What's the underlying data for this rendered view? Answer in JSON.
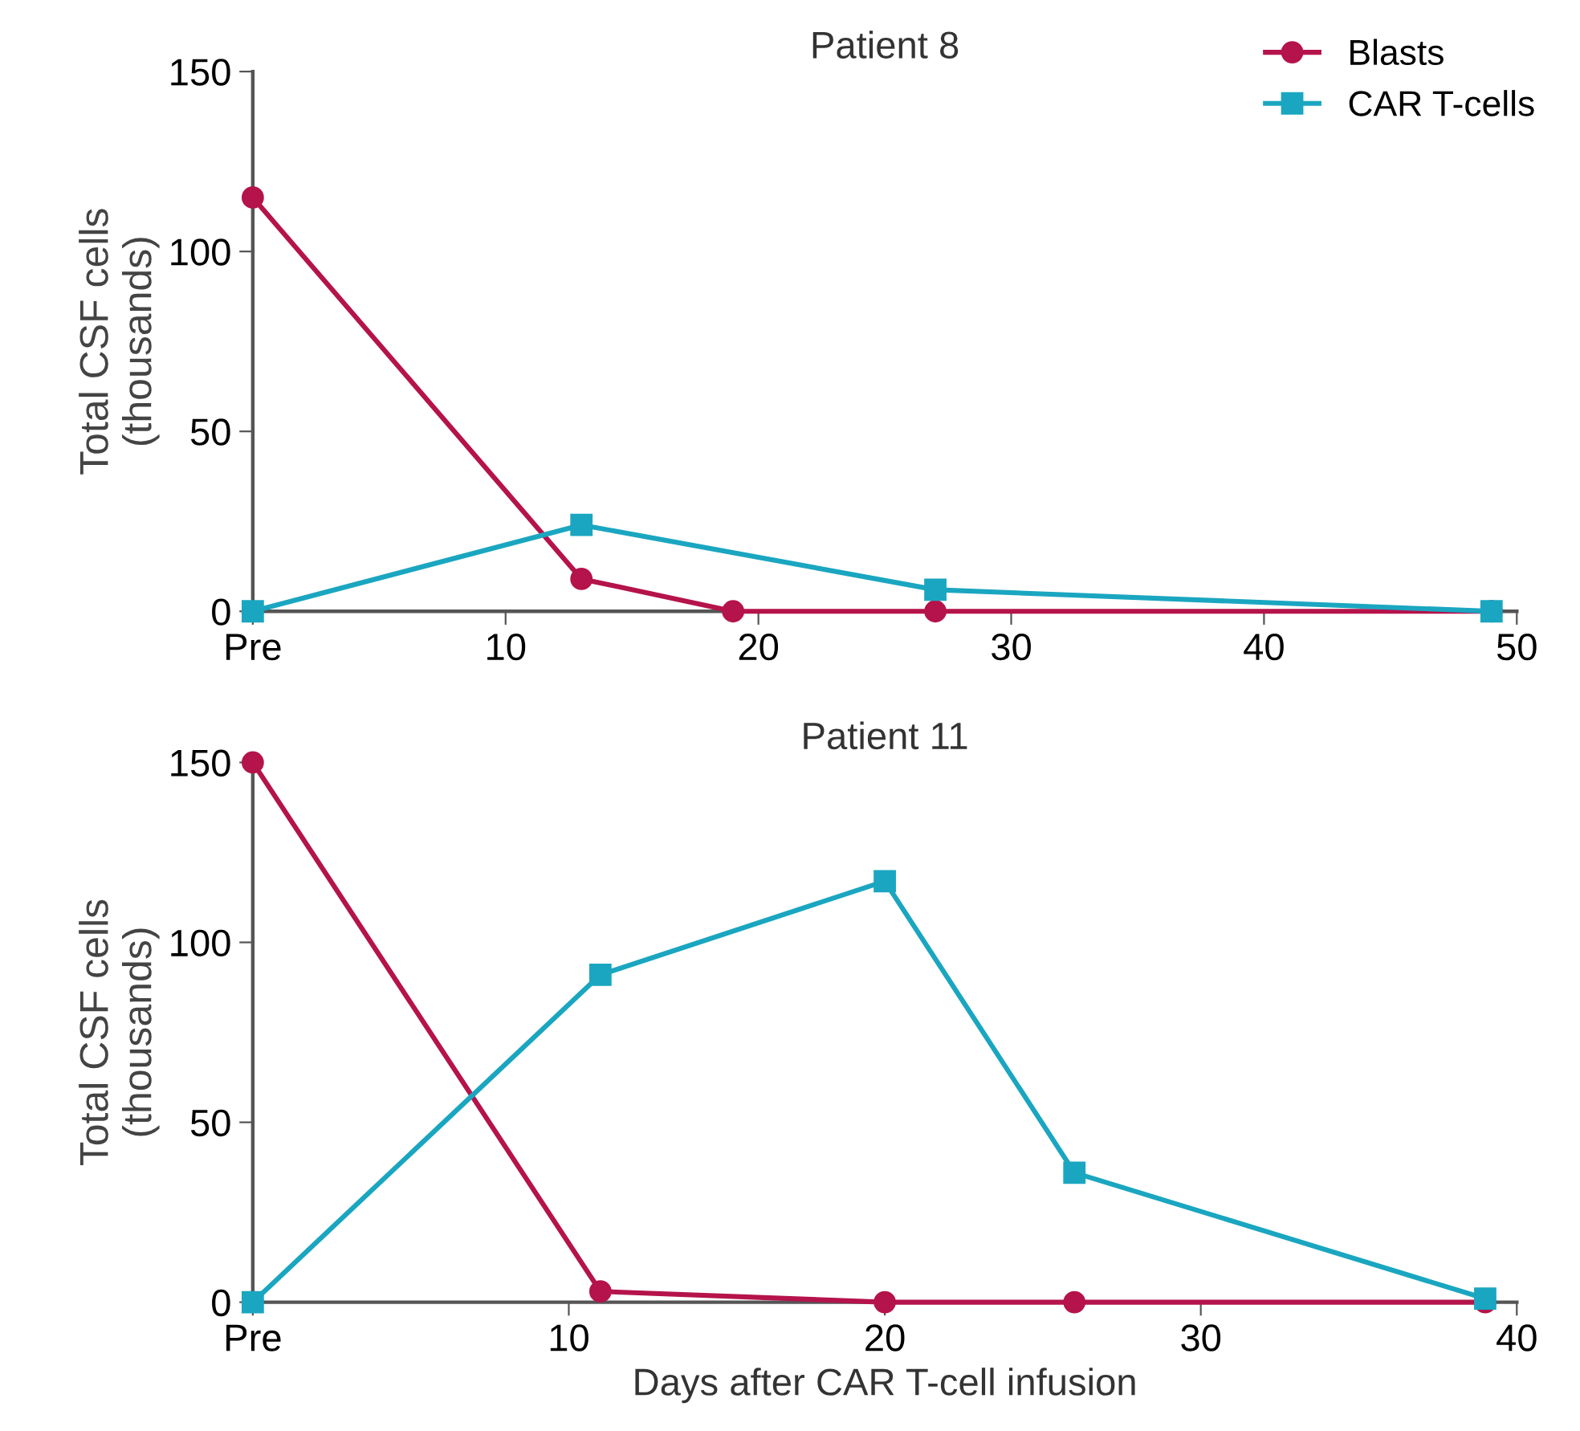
{
  "chart_data": [
    {
      "type": "line",
      "title": "Patient 8",
      "ylabel": "Total CSF cells\n(thousands)",
      "xlim": [
        0,
        50
      ],
      "xticks": [
        {
          "value": 0,
          "label": "Pre"
        },
        10,
        20,
        30,
        40,
        50
      ],
      "ylim": [
        0,
        150
      ],
      "yticks": [
        0,
        50,
        100,
        150
      ],
      "grid": false,
      "legend": "top right",
      "series": [
        {
          "name": "Blasts",
          "color": "#b5134b",
          "marker": "circle",
          "x": [
            0,
            13,
            19,
            27,
            49
          ],
          "values": [
            115,
            9,
            0,
            0,
            0
          ]
        },
        {
          "name": "CAR T-cells",
          "color": "#1aa6c0",
          "marker": "square",
          "x": [
            0,
            13,
            27,
            49
          ],
          "values": [
            0,
            24,
            6,
            0
          ]
        }
      ]
    },
    {
      "type": "line",
      "title": "Patient 11",
      "xlabel": "Days after CAR T-cell infusion",
      "ylabel": "Total CSF cells\n(thousands)",
      "xlim": [
        0,
        40
      ],
      "xticks": [
        {
          "value": 0,
          "label": "Pre"
        },
        10,
        20,
        30,
        40
      ],
      "ylim": [
        0,
        150
      ],
      "yticks": [
        0,
        50,
        100,
        150
      ],
      "grid": false,
      "legend": false,
      "series": [
        {
          "color": "#b5134b",
          "marker": "circle",
          "x": [
            0,
            11,
            20,
            26,
            39
          ],
          "values": [
            150,
            3,
            0,
            0,
            0
          ]
        },
        {
          "color": "#1aa6c0",
          "marker": "square",
          "x": [
            0,
            11,
            20,
            26,
            39
          ],
          "values": [
            0,
            91,
            117,
            36,
            1
          ]
        }
      ]
    }
  ]
}
